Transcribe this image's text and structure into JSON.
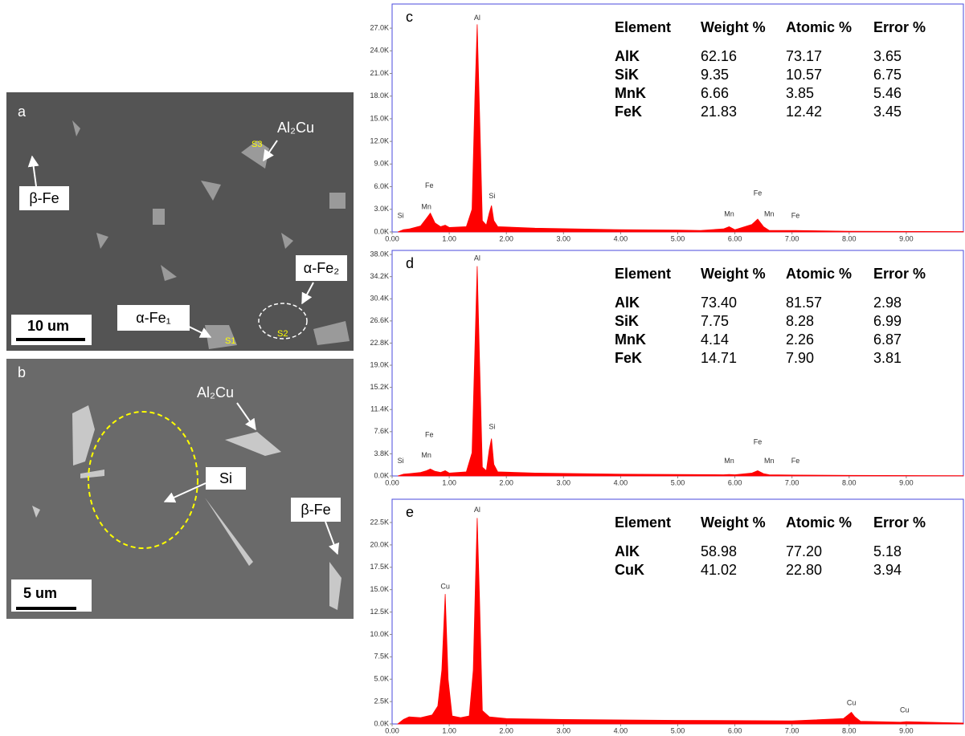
{
  "micrographs": [
    {
      "label": "a",
      "scale_bar": "10 um",
      "annotations": [
        "β-Fe",
        "Al₂Cu",
        "α-Fe₂",
        "α-Fe₁"
      ],
      "points": [
        "S1",
        "S2",
        "S3"
      ]
    },
    {
      "label": "b",
      "scale_bar": "5 um",
      "annotations": [
        "Al₂Cu",
        "Si",
        "β-Fe"
      ]
    }
  ],
  "chart_data": [
    {
      "type": "area",
      "panel": "c",
      "color": "#ff0000",
      "x": [
        0.1,
        0.2,
        0.3,
        0.5,
        0.6,
        0.67,
        0.75,
        0.85,
        0.93,
        1.0,
        1.3,
        1.4,
        1.45,
        1.49,
        1.53,
        1.58,
        1.65,
        1.7,
        1.74,
        1.78,
        1.85,
        2.5,
        4.0,
        5.0,
        5.4,
        5.8,
        5.9,
        6.0,
        6.3,
        6.4,
        6.5,
        6.6,
        7.06,
        8.0,
        10.0
      ],
      "values": [
        0,
        300,
        400,
        800,
        1800,
        2500,
        1200,
        700,
        900,
        600,
        700,
        3000,
        18000,
        27500,
        16000,
        1500,
        900,
        2500,
        3500,
        1500,
        700,
        500,
        300,
        250,
        200,
        400,
        700,
        300,
        1000,
        1700,
        700,
        200,
        200,
        100,
        50
      ],
      "xlim": [
        0,
        10
      ],
      "xticks": [
        {
          "value": 0,
          "label": "0.00"
        },
        {
          "value": 1,
          "label": "1.00"
        },
        {
          "value": 2,
          "label": "2.00"
        },
        {
          "value": 3,
          "label": "3.00"
        },
        {
          "value": 4,
          "label": "4.00"
        },
        {
          "value": 5,
          "label": "5.00"
        },
        {
          "value": 6,
          "label": "6.00"
        },
        {
          "value": 7,
          "label": "7.00"
        },
        {
          "value": 8,
          "label": "8.00"
        },
        {
          "value": 9,
          "label": "9.00"
        }
      ],
      "ylim": [
        0,
        30200
      ],
      "yticks": [
        {
          "value": 0,
          "label": "0.0K"
        },
        {
          "value": 3000,
          "label": "3.0K"
        },
        {
          "value": 6000,
          "label": "6.0K"
        },
        {
          "value": 9000,
          "label": "9.0K"
        },
        {
          "value": 12000,
          "label": "12.0K"
        },
        {
          "value": 15000,
          "label": "15.0K"
        },
        {
          "value": 18000,
          "label": "18.0K"
        },
        {
          "value": 21000,
          "label": "21.0K"
        },
        {
          "value": 24000,
          "label": "24.0K"
        },
        {
          "value": 27000,
          "label": "27.0K"
        }
      ],
      "annotations": [
        {
          "text": "Al",
          "x": 1.49,
          "y": 28300
        },
        {
          "text": "Si",
          "x": 0.15,
          "y": 2100
        },
        {
          "text": "Fe",
          "x": 0.65,
          "y": 6100
        },
        {
          "text": "Mn",
          "x": 0.6,
          "y": 3300
        },
        {
          "text": "Si",
          "x": 1.75,
          "y": 4700
        },
        {
          "text": "Mn",
          "x": 5.9,
          "y": 2300
        },
        {
          "text": "Fe",
          "x": 6.4,
          "y": 5100
        },
        {
          "text": "Mn",
          "x": 6.6,
          "y": 2300
        },
        {
          "text": "Fe",
          "x": 7.06,
          "y": 2100
        }
      ],
      "table": {
        "columns": [
          "Element",
          "Weight %",
          "Atomic %",
          "Error %"
        ],
        "rows": [
          [
            "AlK",
            "62.16",
            "73.17",
            "3.65"
          ],
          [
            "SiK",
            "9.35",
            "10.57",
            "6.75"
          ],
          [
            "MnK",
            "6.66",
            "3.85",
            "5.46"
          ],
          [
            "FeK",
            "21.83",
            "12.42",
            "3.45"
          ]
        ]
      }
    },
    {
      "type": "area",
      "panel": "d",
      "color": "#ff0000",
      "x": [
        0.1,
        0.2,
        0.3,
        0.5,
        0.6,
        0.67,
        0.75,
        0.85,
        0.93,
        1.0,
        1.3,
        1.4,
        1.45,
        1.49,
        1.53,
        1.58,
        1.65,
        1.7,
        1.74,
        1.78,
        1.85,
        2.5,
        4.0,
        5.0,
        5.8,
        5.9,
        6.0,
        6.3,
        6.4,
        6.5,
        6.6,
        7.06,
        8.0,
        10.0
      ],
      "values": [
        0,
        300,
        400,
        600,
        900,
        1200,
        800,
        600,
        900,
        500,
        700,
        4000,
        22000,
        36000,
        20000,
        1500,
        900,
        4500,
        6400,
        2000,
        700,
        500,
        300,
        250,
        200,
        250,
        200,
        500,
        900,
        400,
        200,
        150,
        100,
        50
      ],
      "xlim": [
        0,
        10
      ],
      "xticks": [
        {
          "value": 0,
          "label": "0.00"
        },
        {
          "value": 1,
          "label": "1.00"
        },
        {
          "value": 2,
          "label": "2.00"
        },
        {
          "value": 3,
          "label": "3.00"
        },
        {
          "value": 4,
          "label": "4.00"
        },
        {
          "value": 5,
          "label": "5.00"
        },
        {
          "value": 6,
          "label": "6.00"
        },
        {
          "value": 7,
          "label": "7.00"
        },
        {
          "value": 8,
          "label": "8.00"
        },
        {
          "value": 9,
          "label": "9.00"
        }
      ],
      "ylim": [
        0,
        38700
      ],
      "yticks": [
        {
          "value": 0,
          "label": "0.0K"
        },
        {
          "value": 3800,
          "label": "3.8K"
        },
        {
          "value": 7600,
          "label": "7.6K"
        },
        {
          "value": 11400,
          "label": "11.4K"
        },
        {
          "value": 15200,
          "label": "15.2K"
        },
        {
          "value": 19000,
          "label": "19.0K"
        },
        {
          "value": 22800,
          "label": "22.8K"
        },
        {
          "value": 26600,
          "label": "26.6K"
        },
        {
          "value": 30400,
          "label": "30.4K"
        },
        {
          "value": 34200,
          "label": "34.2K"
        },
        {
          "value": 38000,
          "label": "38.0K"
        }
      ],
      "annotations": [
        {
          "text": "Al",
          "x": 1.49,
          "y": 37300
        },
        {
          "text": "Si",
          "x": 0.15,
          "y": 2500
        },
        {
          "text": "Fe",
          "x": 0.65,
          "y": 7000
        },
        {
          "text": "Mn",
          "x": 0.6,
          "y": 3500
        },
        {
          "text": "Si",
          "x": 1.75,
          "y": 8400
        },
        {
          "text": "Mn",
          "x": 5.9,
          "y": 2500
        },
        {
          "text": "Fe",
          "x": 6.4,
          "y": 5800
        },
        {
          "text": "Mn",
          "x": 6.6,
          "y": 2500
        },
        {
          "text": "Fe",
          "x": 7.06,
          "y": 2500
        }
      ],
      "table": {
        "columns": [
          "Element",
          "Weight %",
          "Atomic %",
          "Error %"
        ],
        "rows": [
          [
            "AlK",
            "73.40",
            "81.57",
            "2.98"
          ],
          [
            "SiK",
            "7.75",
            "8.28",
            "6.99"
          ],
          [
            "MnK",
            "4.14",
            "2.26",
            "6.87"
          ],
          [
            "FeK",
            "14.71",
            "7.90",
            "3.81"
          ]
        ]
      }
    },
    {
      "type": "area",
      "panel": "e",
      "color": "#ff0000",
      "x": [
        0.1,
        0.2,
        0.3,
        0.5,
        0.7,
        0.8,
        0.87,
        0.93,
        0.98,
        1.05,
        1.2,
        1.35,
        1.42,
        1.46,
        1.49,
        1.53,
        1.58,
        1.7,
        2.0,
        3.0,
        5.0,
        7.0,
        7.9,
        7.98,
        8.04,
        8.1,
        8.2,
        8.9,
        9.0,
        10.0
      ],
      "values": [
        0,
        500,
        800,
        700,
        1000,
        2000,
        6000,
        14500,
        5000,
        900,
        700,
        900,
        6000,
        16000,
        23000,
        14000,
        1500,
        800,
        600,
        500,
        400,
        350,
        600,
        1000,
        1300,
        800,
        300,
        200,
        250,
        100
      ],
      "xlim": [
        0,
        10
      ],
      "xticks": [
        {
          "value": 0,
          "label": "0.00"
        },
        {
          "value": 1,
          "label": "1.00"
        },
        {
          "value": 2,
          "label": "2.00"
        },
        {
          "value": 3,
          "label": "3.00"
        },
        {
          "value": 4,
          "label": "4.00"
        },
        {
          "value": 5,
          "label": "5.00"
        },
        {
          "value": 6,
          "label": "6.00"
        },
        {
          "value": 7,
          "label": "7.00"
        },
        {
          "value": 8,
          "label": "8.00"
        },
        {
          "value": 9,
          "label": "9.00"
        }
      ],
      "ylim": [
        0,
        25100
      ],
      "yticks": [
        {
          "value": 0,
          "label": "0.0K"
        },
        {
          "value": 2500,
          "label": "2.5K"
        },
        {
          "value": 5000,
          "label": "5.0K"
        },
        {
          "value": 7500,
          "label": "7.5K"
        },
        {
          "value": 10000,
          "label": "10.0K"
        },
        {
          "value": 12500,
          "label": "12.5K"
        },
        {
          "value": 15000,
          "label": "15.0K"
        },
        {
          "value": 17500,
          "label": "17.5K"
        },
        {
          "value": 20000,
          "label": "20.0K"
        },
        {
          "value": 22500,
          "label": "22.5K"
        }
      ],
      "annotations": [
        {
          "text": "Al",
          "x": 1.49,
          "y": 23900
        },
        {
          "text": "Cu",
          "x": 0.93,
          "y": 15300
        },
        {
          "text": "Cu",
          "x": 8.04,
          "y": 2300
        },
        {
          "text": "Cu",
          "x": 8.97,
          "y": 1500
        }
      ],
      "table": {
        "columns": [
          "Element",
          "Weight %",
          "Atomic %",
          "Error %"
        ],
        "rows": [
          [
            "AlK",
            "58.98",
            "77.20",
            "5.18"
          ],
          [
            "CuK",
            "41.02",
            "22.80",
            "3.94"
          ]
        ]
      }
    }
  ]
}
